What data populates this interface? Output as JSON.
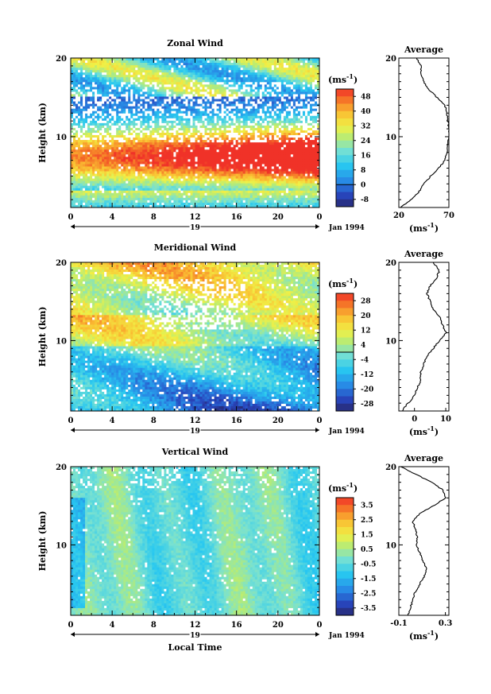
{
  "chart_data": [
    {
      "type": "heatmap",
      "title": "Zonal Wind",
      "xlabel": "",
      "ylabel": "Height (km)",
      "xlim": [
        0,
        24
      ],
      "ylim": [
        1,
        20
      ],
      "x_ticks": [
        "0",
        "4",
        "8",
        "12",
        "16",
        "20",
        "0"
      ],
      "y_ticks": [
        "20",
        "10"
      ],
      "date_day": "19",
      "date_label": "Jan 1994",
      "colorbar": {
        "unit": "(ms",
        "unit_exp": "-1",
        "unit_close": ")",
        "labels": [
          "48",
          "40",
          "32",
          "24",
          "16",
          "8",
          "0",
          "-8"
        ],
        "range": [
          -12,
          52
        ],
        "zero_line": 0
      },
      "profile": {
        "title": "Average",
        "xlim": [
          20,
          70
        ],
        "x_ticks": [
          "20",
          "70"
        ],
        "unit": "(ms",
        "unit_exp": "-1",
        "unit_close": ")",
        "y_ticks": [
          "20",
          "10"
        ],
        "heights": [
          1,
          2,
          3,
          4,
          5,
          6,
          7,
          8,
          9,
          10,
          11,
          12,
          13,
          14,
          15,
          16,
          17,
          18,
          19,
          20
        ],
        "values": [
          22,
          32,
          40,
          45,
          52,
          60,
          66,
          68,
          69,
          70,
          70,
          69,
          68,
          66,
          58,
          50,
          45,
          42,
          42,
          38
        ]
      }
    },
    {
      "type": "heatmap",
      "title": "Meridional Wind",
      "xlabel": "",
      "ylabel": "Height (km)",
      "xlim": [
        0,
        24
      ],
      "ylim": [
        1,
        20
      ],
      "x_ticks": [
        "0",
        "4",
        "8",
        "12",
        "16",
        "20",
        "0"
      ],
      "y_ticks": [
        "20",
        "10"
      ],
      "date_day": "19",
      "date_label": "Jan 1994",
      "colorbar": {
        "unit": "(ms",
        "unit_exp": "-1",
        "unit_close": ")",
        "labels": [
          "28",
          "20",
          "12",
          "4",
          "-4",
          "-12",
          "-20",
          "-28"
        ],
        "range": [
          -32,
          32
        ],
        "zero_line": 0
      },
      "profile": {
        "title": "Average",
        "xlim": [
          -5,
          11
        ],
        "x_ticks": [
          "0",
          "10"
        ],
        "unit": "(ms",
        "unit_exp": "-1",
        "unit_close": ")",
        "y_ticks": [
          "20",
          "10"
        ],
        "heights": [
          1,
          2,
          3,
          4,
          5,
          6,
          7,
          8,
          9,
          10,
          11,
          12,
          13,
          14,
          15,
          16,
          17,
          18,
          19,
          20
        ],
        "values": [
          -4,
          -2,
          0,
          1,
          2,
          2,
          3,
          4,
          6,
          8,
          10,
          9,
          8,
          6,
          5,
          4,
          5,
          7,
          8,
          6
        ]
      }
    },
    {
      "type": "heatmap",
      "title": "Vertical Wind",
      "xlabel": "Local Time",
      "ylabel": "Height (km)",
      "xlim": [
        0,
        24
      ],
      "ylim": [
        1,
        20
      ],
      "x_ticks": [
        "0",
        "4",
        "8",
        "12",
        "16",
        "20",
        "0"
      ],
      "y_ticks": [
        "20",
        "10"
      ],
      "date_day": "19",
      "date_label": "Jan 1994",
      "colorbar": {
        "unit": "(ms",
        "unit_exp": "-1",
        "unit_close": ")",
        "labels": [
          "3.5",
          "2.5",
          "1.5",
          "0.5",
          "-0.5",
          "-1.5",
          "-2.5",
          "-3.5"
        ],
        "range": [
          -4,
          4
        ],
        "zero_line": null
      },
      "profile": {
        "title": "Average",
        "xlim": [
          -0.1,
          0.33
        ],
        "x_ticks": [
          "-0.1",
          "0.3"
        ],
        "unit": "(ms",
        "unit_exp": "-1",
        "unit_close": ")",
        "y_ticks": [
          "20",
          "10"
        ],
        "heights": [
          1,
          2,
          3,
          4,
          5,
          6,
          7,
          8,
          9,
          10,
          11,
          12,
          13,
          14,
          15,
          16,
          17,
          18,
          19,
          20
        ],
        "values": [
          -0.02,
          0.0,
          0.02,
          0.04,
          0.08,
          0.12,
          0.14,
          0.1,
          0.08,
          0.05,
          0.06,
          0.04,
          0.02,
          0.08,
          0.2,
          0.3,
          0.28,
          0.18,
          0.05,
          -0.08
        ]
      }
    }
  ]
}
